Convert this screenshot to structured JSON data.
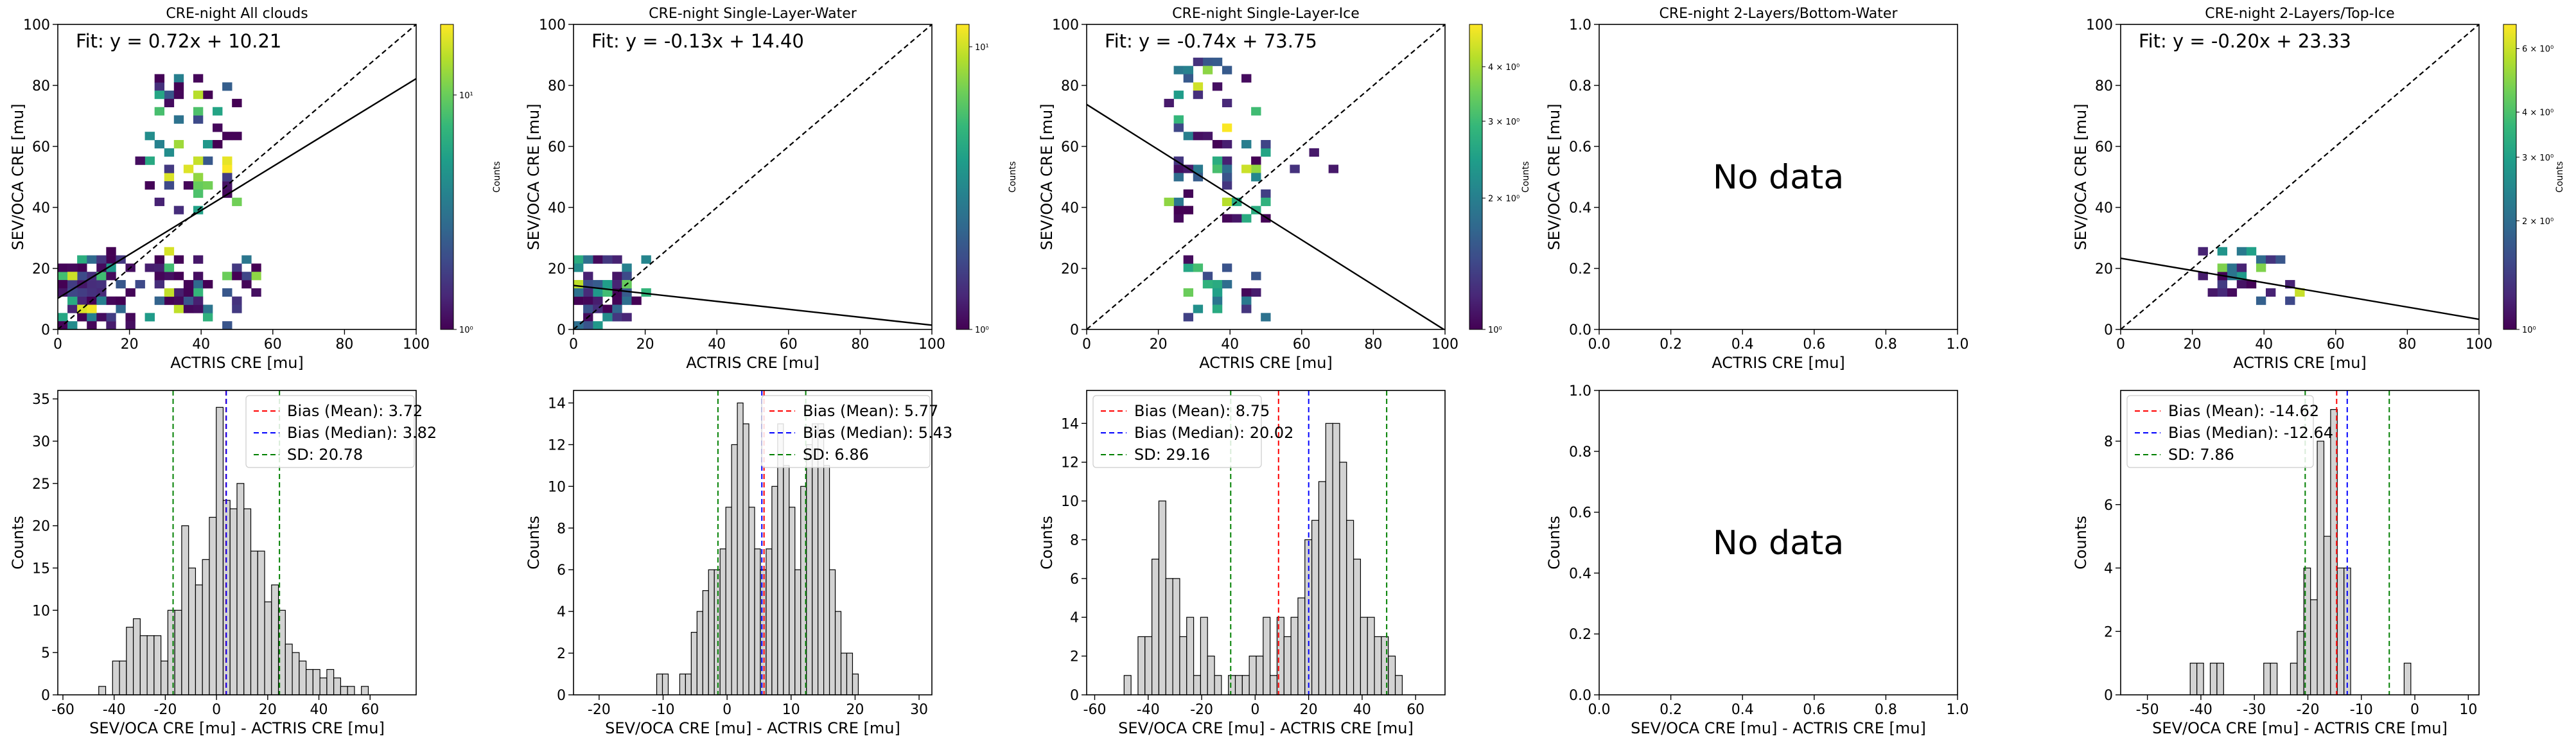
{
  "colormap": [
    "#440154",
    "#482878",
    "#3e4989",
    "#31688e",
    "#26828e",
    "#1f9e89",
    "#35b779",
    "#6ece58",
    "#b5de2b",
    "#fde725"
  ],
  "colors": {
    "fit_line": "#000000",
    "identity_line": "#000000",
    "hist_fill": "#d3d3d3",
    "hist_edge": "#000000",
    "mean_line": "#ff0000",
    "median_line": "#0000ff",
    "sd_line": "#008000",
    "no_data_text": "#000000"
  },
  "chart_data": [
    {
      "type": "heatmap",
      "title": "CRE-night All clouds",
      "xlabel": "ACTRIS CRE [mu]",
      "ylabel": "SEV/OCA CRE [mu]",
      "xlim": [
        0,
        100
      ],
      "ylim": [
        0,
        100
      ],
      "xticks": [
        0,
        20,
        40,
        60,
        80,
        100
      ],
      "yticks": [
        0,
        20,
        40,
        60,
        80,
        100
      ],
      "fit_text": "Fit: y = 0.72x + 10.21",
      "fit": {
        "slope": 0.72,
        "intercept": 10.21
      },
      "identity_line": true,
      "colorbar": {
        "label": "Counts",
        "scale": "log",
        "min": 1,
        "max": 20,
        "ticklabels": [
          {
            "v": 1,
            "t": "10⁰"
          },
          {
            "v": 10,
            "t": "10¹"
          }
        ]
      },
      "clusters": [
        {
          "x": [
            0,
            20
          ],
          "y": [
            0,
            25
          ],
          "n": 95,
          "seed": 11
        },
        {
          "x": [
            24,
            55
          ],
          "y": [
            0,
            25
          ],
          "n": 60,
          "seed": 12
        },
        {
          "x": [
            24,
            50
          ],
          "y": [
            40,
            82
          ],
          "n": 50,
          "seed": 13
        },
        {
          "x": [
            26,
            40
          ],
          "y": [
            70,
            86
          ],
          "n": 10,
          "seed": 14
        }
      ]
    },
    {
      "type": "heatmap",
      "title": "CRE-night Single-Layer-Water",
      "xlabel": "ACTRIS CRE [mu]",
      "ylabel": "SEV/OCA CRE [mu]",
      "xlim": [
        0,
        100
      ],
      "ylim": [
        0,
        100
      ],
      "xticks": [
        0,
        20,
        40,
        60,
        80,
        100
      ],
      "yticks": [
        0,
        20,
        40,
        60,
        80,
        100
      ],
      "fit_text": "Fit: y = -0.13x + 14.40",
      "fit": {
        "slope": -0.13,
        "intercept": 14.4
      },
      "identity_line": true,
      "colorbar": {
        "label": "Counts",
        "scale": "log",
        "min": 1,
        "max": 12,
        "ticklabels": [
          {
            "v": 1,
            "t": "10⁰"
          },
          {
            "v": 10,
            "t": "10¹"
          }
        ]
      },
      "clusters": [
        {
          "x": [
            0,
            16
          ],
          "y": [
            0,
            25
          ],
          "n": 70,
          "seed": 21
        },
        {
          "x": [
            14,
            22
          ],
          "y": [
            10,
            25
          ],
          "n": 6,
          "seed": 22
        }
      ]
    },
    {
      "type": "heatmap",
      "title": "CRE-night Single-Layer-Ice",
      "xlabel": "ACTRIS CRE [mu]",
      "ylabel": "SEV/OCA CRE [mu]",
      "xlim": [
        0,
        100
      ],
      "ylim": [
        0,
        100
      ],
      "xticks": [
        0,
        20,
        40,
        60,
        80,
        100
      ],
      "yticks": [
        0,
        20,
        40,
        60,
        80,
        100
      ],
      "fit_text": "Fit: y = -0.74x + 73.75",
      "fit": {
        "slope": -0.74,
        "intercept": 73.75
      },
      "identity_line": true,
      "colorbar": {
        "label": "Counts",
        "scale": "log",
        "min": 1,
        "max": 5,
        "ticklabels": [
          {
            "v": 1,
            "t": "10⁰"
          },
          {
            "v": 2,
            "t": "2 × 10⁰"
          },
          {
            "v": 3,
            "t": "3 × 10⁰"
          },
          {
            "v": 4,
            "t": "4 × 10⁰"
          }
        ]
      },
      "clusters": [
        {
          "x": [
            22,
            50
          ],
          "y": [
            35,
            88
          ],
          "n": 60,
          "seed": 31
        },
        {
          "x": [
            25,
            52
          ],
          "y": [
            5,
            22
          ],
          "n": 22,
          "seed": 32
        },
        {
          "x": [
            55,
            72
          ],
          "y": [
            50,
            58
          ],
          "n": 3,
          "seed": 33
        }
      ]
    },
    {
      "type": "empty",
      "title": "CRE-night 2-Layers/Bottom-Water",
      "xlabel": "ACTRIS CRE [mu]",
      "ylabel": "SEV/OCA CRE [mu]",
      "xlim": [
        0,
        1
      ],
      "ylim": [
        0,
        1
      ],
      "xticks": [
        "0.0",
        "0.2",
        "0.4",
        "0.6",
        "0.8",
        "1.0"
      ],
      "yticks": [
        "0.0",
        "0.2",
        "0.4",
        "0.6",
        "0.8",
        "1.0"
      ],
      "no_data_text": "No data"
    },
    {
      "type": "heatmap",
      "title": "CRE-night 2-Layers/Top-Ice",
      "xlabel": "ACTRIS CRE [mu]",
      "ylabel": "SEV/OCA CRE [mu]",
      "xlim": [
        0,
        100
      ],
      "ylim": [
        0,
        100
      ],
      "xticks": [
        0,
        20,
        40,
        60,
        80,
        100
      ],
      "yticks": [
        0,
        20,
        40,
        60,
        80,
        100
      ],
      "fit_text": "Fit: y = -0.20x + 23.33",
      "fit": {
        "slope": -0.2,
        "intercept": 23.33
      },
      "identity_line": true,
      "colorbar": {
        "label": "Counts",
        "scale": "log",
        "min": 1,
        "max": 7,
        "ticklabels": [
          {
            "v": 1,
            "t": "10⁰"
          },
          {
            "v": 2,
            "t": "2 × 10⁰"
          },
          {
            "v": 3,
            "t": "3 × 10⁰"
          },
          {
            "v": 4,
            "t": "4 × 10⁰"
          },
          {
            "v": 6,
            "t": "6 × 10⁰"
          }
        ]
      },
      "clusters": [
        {
          "x": [
            22,
            44
          ],
          "y": [
            10,
            27
          ],
          "n": 28,
          "seed": 51
        },
        {
          "x": [
            40,
            52
          ],
          "y": [
            10,
            22
          ],
          "n": 4,
          "seed": 52
        }
      ]
    },
    {
      "type": "bar",
      "subtype": "histogram",
      "xlabel": "SEV/OCA CRE [mu] - ACTRIS CRE [mu]",
      "ylabel": "Counts",
      "xlim": [
        -62,
        78
      ],
      "ylim": [
        0,
        36
      ],
      "xticks": [
        -60,
        -40,
        -20,
        0,
        20,
        40,
        60
      ],
      "yticks": [
        0,
        5,
        10,
        15,
        20,
        25,
        30,
        35
      ],
      "bin_start": -46,
      "bin_width": 2.7,
      "counts": [
        1,
        0,
        4,
        4,
        8,
        9,
        7,
        7,
        7,
        4,
        10,
        10,
        20,
        15,
        13,
        16,
        21,
        34,
        23,
        22,
        25,
        22,
        17,
        17,
        11,
        13,
        10,
        6,
        5,
        4,
        3,
        3,
        2,
        3,
        2,
        1,
        1,
        0,
        1
      ],
      "bias_mean": 3.72,
      "bias_median": 3.82,
      "sd": 20.78,
      "legend": [
        "Bias (Mean): 3.72",
        "Bias (Median): 3.82",
        "SD: 20.78"
      ]
    },
    {
      "type": "bar",
      "subtype": "histogram",
      "xlabel": "SEV/OCA CRE [mu] - ACTRIS CRE [mu]",
      "ylabel": "Counts",
      "xlim": [
        -24,
        32
      ],
      "ylim": [
        0,
        14.6
      ],
      "xticks": [
        -20,
        -10,
        0,
        10,
        20,
        30
      ],
      "yticks": [
        0,
        2,
        4,
        6,
        8,
        10,
        12,
        14
      ],
      "bin_start": -11,
      "bin_width": 0.9,
      "counts": [
        1,
        1,
        0,
        0,
        1,
        1,
        3,
        4,
        5,
        6,
        6,
        7,
        9,
        12,
        14,
        13,
        9,
        7,
        6,
        7,
        10,
        13,
        11,
        9,
        6,
        10,
        12,
        13,
        13,
        11,
        6,
        4,
        2,
        2,
        1
      ],
      "bias_mean": 5.77,
      "bias_median": 5.43,
      "sd": 6.86,
      "legend": [
        "Bias (Mean): 5.77",
        "Bias (Median): 5.43",
        "SD: 6.86"
      ]
    },
    {
      "type": "bar",
      "subtype": "histogram",
      "xlabel": "SEV/OCA CRE [mu] - ACTRIS CRE [mu]",
      "ylabel": "Counts",
      "xlim": [
        -63,
        71
      ],
      "ylim": [
        0,
        15.7
      ],
      "xticks": [
        -60,
        -40,
        -20,
        0,
        20,
        40,
        60
      ],
      "yticks": [
        0,
        2,
        4,
        6,
        8,
        10,
        12,
        14
      ],
      "bin_start": -49,
      "bin_width": 2.6,
      "counts": [
        1,
        0,
        3,
        3,
        7,
        10,
        6,
        6,
        3,
        4,
        1,
        4,
        2,
        1,
        0,
        1,
        1,
        1,
        2,
        2,
        4,
        1,
        4,
        3,
        4,
        5,
        8,
        9,
        11,
        14,
        14,
        12,
        9,
        7,
        4,
        4,
        3,
        3,
        2,
        1
      ],
      "bias_mean": 8.75,
      "bias_median": 20.02,
      "sd": 29.16,
      "legend": [
        "Bias (Mean): 8.75",
        "Bias (Median): 20.02",
        "SD: 29.16"
      ]
    },
    {
      "type": "empty",
      "xlabel": "SEV/OCA CRE [mu] - ACTRIS CRE [mu]",
      "ylabel": "Counts",
      "xlim": [
        0,
        1
      ],
      "ylim": [
        0,
        1
      ],
      "xticks": [
        "0.0",
        "0.2",
        "0.4",
        "0.6",
        "0.8",
        "1.0"
      ],
      "yticks": [
        "0.0",
        "0.2",
        "0.4",
        "0.6",
        "0.8",
        "1.0"
      ],
      "no_data_text": "No data"
    },
    {
      "type": "bar",
      "subtype": "histogram",
      "xlabel": "SEV/OCA CRE [mu] - ACTRIS CRE [mu]",
      "ylabel": "Counts",
      "xlim": [
        -55,
        12
      ],
      "ylim": [
        0,
        9.6
      ],
      "xticks": [
        -50,
        -40,
        -30,
        -20,
        -10,
        0,
        10
      ],
      "yticks": [
        0,
        2,
        4,
        6,
        8
      ],
      "bin_start": -42,
      "bin_width": 1.25,
      "counts": [
        1,
        1,
        0,
        1,
        1,
        0,
        0,
        0,
        0,
        0,
        0,
        1,
        1,
        0,
        0,
        1,
        2,
        4,
        3,
        8,
        5,
        9,
        4,
        4,
        0,
        0,
        0,
        0,
        0,
        0,
        0,
        0,
        1
      ],
      "bias_mean": -14.62,
      "bias_median": -12.64,
      "sd": 7.86,
      "legend": [
        "Bias (Mean): -14.62",
        "Bias (Median): -12.64",
        "SD: 7.86"
      ]
    }
  ]
}
